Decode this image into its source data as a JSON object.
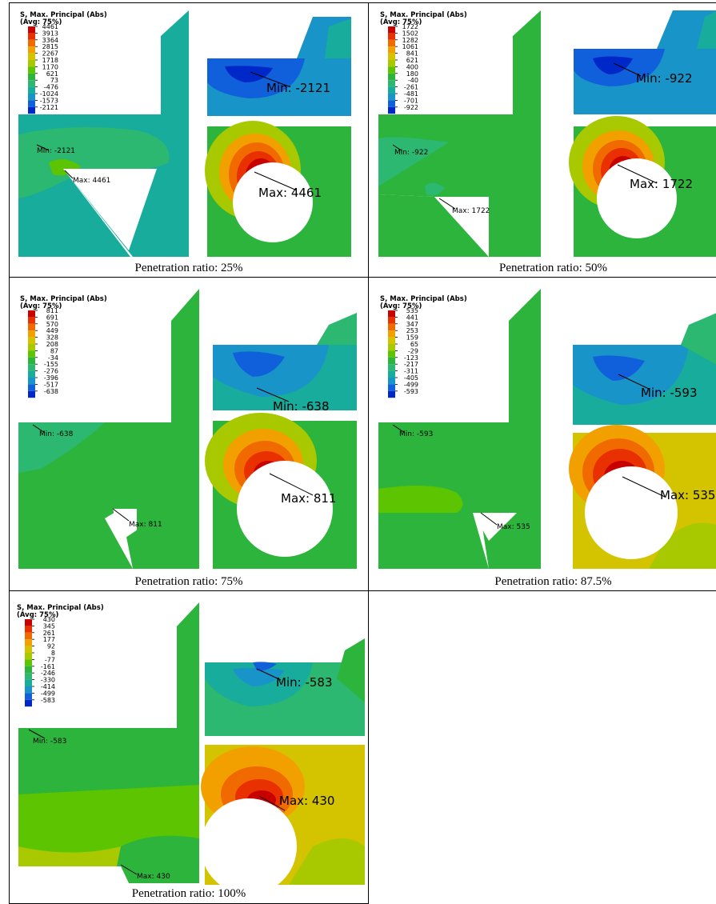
{
  "figure": {
    "legend_title_line1": "S, Max. Principal (Abs)",
    "legend_title_line2": "(Avg: 75%)",
    "contour_colors": [
      "#c80000",
      "#e83000",
      "#f06a00",
      "#f2a000",
      "#d4c400",
      "#a8c800",
      "#5cc400",
      "#2cb43c",
      "#2cb870",
      "#18ac9c",
      "#1894c8",
      "#1060dc",
      "#0028c8"
    ],
    "panels": [
      {
        "caption": "Penetration ratio: 25%",
        "legend_values": [
          "4461",
          "3913",
          "3364",
          "2815",
          "2267",
          "1718",
          "1170",
          "621",
          "73",
          "-476",
          "-1024",
          "-1573",
          "-2121"
        ],
        "min_label_small": "Min: -2121",
        "max_label_small": "Max: 4461",
        "min_label_zoom": "Min: -2121",
        "max_label_zoom": "Max: 4461"
      },
      {
        "caption": "Penetration ratio: 50%",
        "legend_values": [
          "1722",
          "1502",
          "1282",
          "1061",
          "841",
          "621",
          "400",
          "180",
          "-40",
          "-261",
          "-481",
          "-701",
          "-922"
        ],
        "min_label_small": "Min: -922",
        "max_label_small": "Max: 1722",
        "min_label_zoom": "Min: -922",
        "max_label_zoom": "Max: 1722"
      },
      {
        "caption": "Penetration ratio: 75%",
        "legend_values": [
          "811",
          "691",
          "570",
          "449",
          "328",
          "208",
          "87",
          "-34",
          "-155",
          "-276",
          "-396",
          "-517",
          "-638"
        ],
        "min_label_small": "Min: -638",
        "max_label_small": "Max: 811",
        "min_label_zoom": "Min: -638",
        "max_label_zoom": "Max: 811"
      },
      {
        "caption": "Penetration ratio: 87.5%",
        "legend_values": [
          "535",
          "441",
          "347",
          "253",
          "159",
          "65",
          "-29",
          "-123",
          "-217",
          "-311",
          "-405",
          "-499",
          "-593"
        ],
        "min_label_small": "Min: -593",
        "max_label_small": "Max: 535",
        "min_label_zoom": "Min: -593",
        "max_label_zoom": "Max: 535"
      },
      {
        "caption": "Penetration ratio: 100%",
        "legend_values": [
          "430",
          "345",
          "261",
          "177",
          "92",
          "8",
          "-77",
          "-161",
          "-246",
          "-330",
          "-414",
          "-499",
          "-583"
        ],
        "min_label_small": "Min: -583",
        "max_label_small": "Max: 430",
        "min_label_zoom": "Min: -583",
        "max_label_zoom": "Max: 430"
      }
    ]
  }
}
